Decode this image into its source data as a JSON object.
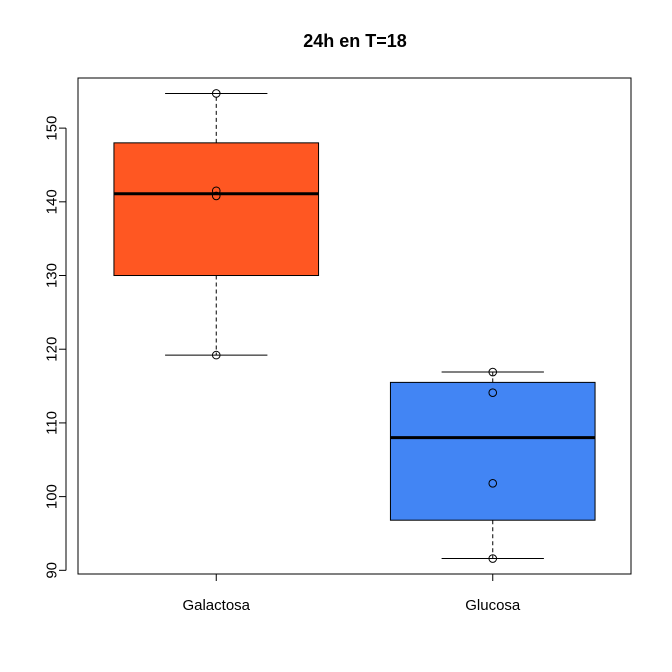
{
  "chart_data": {
    "type": "boxplot",
    "title": "24h en T=18",
    "xlabel": "",
    "ylabel": "",
    "ylim": [
      89.5,
      156.8
    ],
    "y_ticks": [
      90,
      100,
      110,
      120,
      130,
      140,
      150
    ],
    "categories": [
      "Galactosa",
      "Glucosa"
    ],
    "boxes": [
      {
        "category": "Galactosa",
        "color": "#FF5722",
        "whisker_low": 119.2,
        "q1": 130.0,
        "median": 141.1,
        "q3": 148.0,
        "whisker_high": 154.7,
        "points": [
          154.7,
          141.5,
          140.8,
          119.2
        ]
      },
      {
        "category": "Glucosa",
        "color": "#4285F4",
        "whisker_low": 91.6,
        "q1": 96.8,
        "median": 108.0,
        "q3": 115.5,
        "whisker_high": 116.9,
        "points": [
          116.9,
          114.1,
          101.8,
          91.6
        ]
      }
    ]
  }
}
